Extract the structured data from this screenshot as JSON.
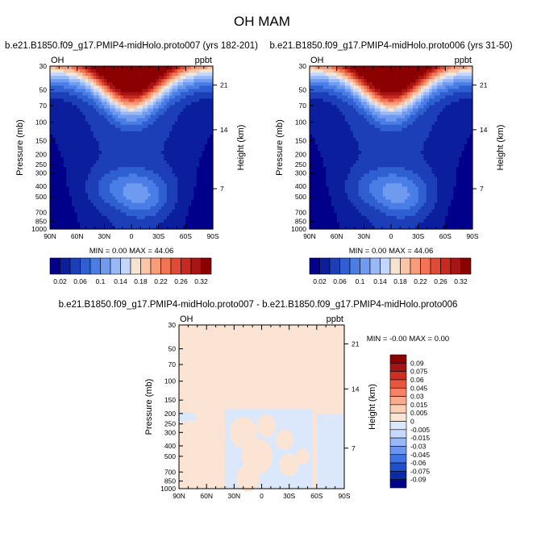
{
  "figure": {
    "title": "OH MAM"
  },
  "colors": {
    "bluered_16": [
      "#00008b",
      "#0a1e9e",
      "#1c3fb8",
      "#2f5fd0",
      "#4a7ee6",
      "#6e9af0",
      "#98b8f6",
      "#c3d6fb",
      "#f6e4d2",
      "#fcc5a8",
      "#fb9c78",
      "#f27452",
      "#e04b34",
      "#c92a20",
      "#a81515",
      "#8b0000"
    ],
    "diff_palette": [
      "#00008b",
      "#0a2aa8",
      "#1f4fcb",
      "#3f73e4",
      "#6a96f0",
      "#99b8f6",
      "#c6d8fb",
      "#dbe8fb",
      "#fbe4d3",
      "#fbcfb4",
      "#fbab8a",
      "#f58365",
      "#e5583e",
      "#cd2f22",
      "#a31515",
      "#8b0000"
    ]
  },
  "chart_data": [
    {
      "type": "heatmap",
      "title": "b.e21.B1850.f09_g17.PMIP4-midHolo.proto007 (yrs 182-201)",
      "left_label": "OH",
      "right_label": "ppbt",
      "xlabel": "",
      "ylabel": "Pressure (mb)",
      "y2label": "Height (km)",
      "x_ticks": [
        "90N",
        "60N",
        "30N",
        "0",
        "30S",
        "60S",
        "90S"
      ],
      "y_ticks": [
        "30",
        "50",
        "70",
        "100",
        "150",
        "200",
        "250",
        "300",
        "400",
        "500",
        "700",
        "850",
        "1000"
      ],
      "y2_ticks": [
        "21",
        "14",
        "7"
      ],
      "y_scale": "log",
      "ylim": [
        1000,
        30
      ],
      "min_max_text": "MIN =   0.00  MAX =  44.06",
      "colorbar_labels": [
        "0.02",
        "0.06",
        "0.1",
        "0.14",
        "0.18",
        "0.22",
        "0.26",
        "0.32"
      ]
    },
    {
      "type": "heatmap",
      "title": "b.e21.B1850.f09_g17.PMIP4-midHolo.proto006 (yrs 31-50)",
      "left_label": "OH",
      "right_label": "ppbt",
      "xlabel": "",
      "ylabel": "Pressure (mb)",
      "y2label": "Height (km)",
      "x_ticks": [
        "90N",
        "60N",
        "30N",
        "0",
        "30S",
        "60S",
        "90S"
      ],
      "y_ticks": [
        "30",
        "50",
        "70",
        "100",
        "150",
        "200",
        "250",
        "300",
        "400",
        "500",
        "700",
        "850",
        "1000"
      ],
      "y2_ticks": [
        "21",
        "14",
        "7"
      ],
      "y_scale": "log",
      "ylim": [
        1000,
        30
      ],
      "min_max_text": "MIN =   0.00  MAX =  44.06",
      "colorbar_labels": [
        "0.02",
        "0.06",
        "0.1",
        "0.14",
        "0.18",
        "0.22",
        "0.26",
        "0.32"
      ]
    },
    {
      "type": "heatmap",
      "title": "b.e21.B1850.f09_g17.PMIP4-midHolo.proto007 - b.e21.B1850.f09_g17.PMIP4-midHolo.proto006",
      "left_label": "OH",
      "right_label": "ppbt",
      "xlabel": "",
      "ylabel": "Pressure (mb)",
      "y2label": "Height (km)",
      "x_ticks": [
        "90N",
        "60N",
        "30N",
        "0",
        "30S",
        "60S",
        "90S"
      ],
      "y_ticks": [
        "30",
        "50",
        "70",
        "100",
        "150",
        "200",
        "250",
        "300",
        "400",
        "500",
        "700",
        "850",
        "1000"
      ],
      "y2_ticks": [
        "21",
        "14",
        "7"
      ],
      "y_scale": "log",
      "ylim": [
        1000,
        30
      ],
      "min_max_text": "MIN = -0.00  MAX =   0.00",
      "colorbar_labels": [
        "0.09",
        "0.075",
        "0.06",
        "0.045",
        "0.03",
        "0.015",
        "0.005",
        "0",
        "-0.005",
        "-0.015",
        "-0.03",
        "-0.045",
        "-0.06",
        "-0.075",
        "-0.09"
      ]
    }
  ]
}
